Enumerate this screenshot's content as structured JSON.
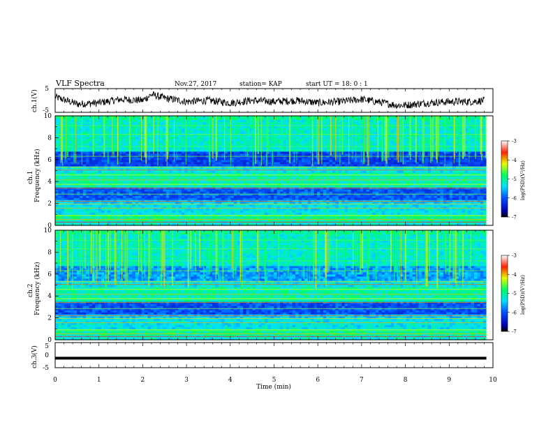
{
  "header": {
    "title": "VLF Spectra",
    "date": "Nov.27, 2017",
    "station": "station= KAP",
    "start": "start  UT =   18: 0  : 1"
  },
  "chart_data": [
    {
      "type": "line",
      "panel": "ch1-waveform",
      "ylabel": "ch.1(V)",
      "ylim": [
        -5,
        5
      ],
      "yticks": [
        "5",
        "-5"
      ],
      "xlim": [
        0,
        10
      ],
      "series": [
        {
          "x": [
            0,
            0.5,
            1,
            1.5,
            2,
            2.2,
            2.5,
            3,
            3.5,
            4,
            4.5,
            5,
            5.5,
            6,
            6.5,
            7,
            7.5,
            7.8,
            8,
            8.5,
            9,
            9.5,
            9.8
          ],
          "y": [
            1.5,
            -1.5,
            -1,
            0.5,
            0,
            2.5,
            1,
            -0.5,
            0,
            -1,
            0,
            -0.5,
            0,
            -1,
            -0.5,
            0.5,
            -1,
            -2,
            -2,
            -1,
            -0.5,
            -0.5,
            0
          ]
        }
      ]
    },
    {
      "type": "heatmap",
      "panel": "ch1-spectrogram",
      "ylabel_top": "ch.1",
      "ylabel": "Frequency (kHz)",
      "xlim": [
        0,
        9.85
      ],
      "ylim": [
        0,
        10
      ],
      "yticks": [
        "0",
        "2",
        "4",
        "6",
        "8",
        "10"
      ],
      "colorbar": {
        "label": "log(PSD)(V²/Hz)",
        "range": [
          -7,
          -3
        ],
        "ticks": [
          "-3",
          "-4",
          "-5",
          "-6",
          "-7"
        ]
      }
    },
    {
      "type": "heatmap",
      "panel": "ch2-spectrogram",
      "ylabel_top": "ch.2",
      "ylabel": "Frequency (kHz)",
      "xlim": [
        0,
        9.85
      ],
      "ylim": [
        0,
        10
      ],
      "yticks": [
        "0",
        "2",
        "4",
        "6",
        "8",
        "10"
      ],
      "colorbar": {
        "label": "log(PSD)(V²/Hz)",
        "range": [
          -7,
          -3
        ],
        "ticks": [
          "-3",
          "-4",
          "-5",
          "-6",
          "-7"
        ]
      }
    },
    {
      "type": "line",
      "panel": "ch3-waveform",
      "ylabel": "ch.3(V)",
      "ylim": [
        -5,
        5
      ],
      "yticks": [
        "5",
        "0",
        "-5"
      ],
      "xlim": [
        0,
        10
      ],
      "series": [
        {
          "x": [
            0,
            9.85
          ],
          "y": [
            -1.2,
            -1.2
          ]
        }
      ]
    }
  ],
  "xaxis": {
    "label": "Time (min)",
    "ticks": [
      "0",
      "1",
      "2",
      "3",
      "4",
      "5",
      "6",
      "7",
      "8",
      "9",
      "10"
    ]
  }
}
